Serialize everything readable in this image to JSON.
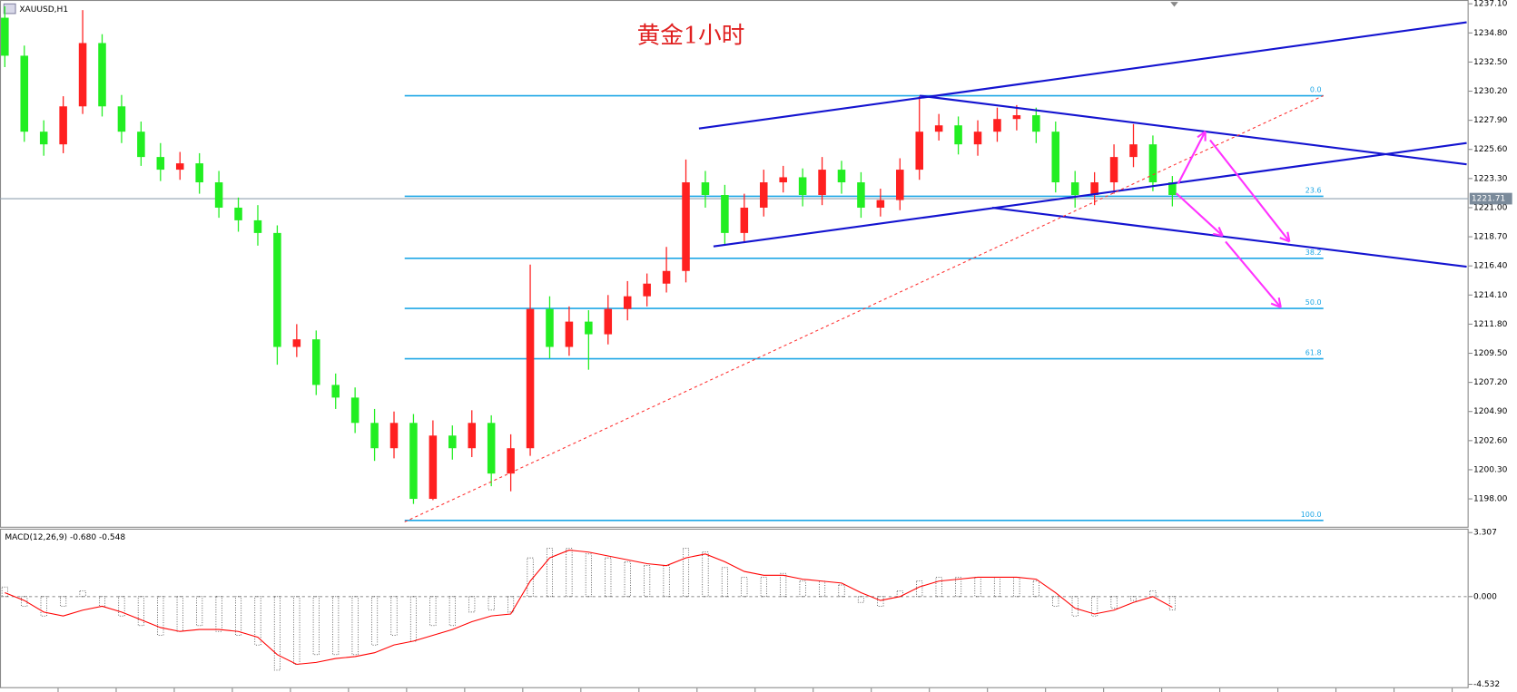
{
  "chart_data": [
    {
      "type": "candlestick",
      "title": "黄金1小时",
      "symbol": "XAUUSD,H1",
      "open": [
        1236,
        1233,
        1227,
        1226,
        1229,
        1234,
        1229,
        1227,
        1225,
        1224,
        1224.5,
        1223,
        1221,
        1220,
        1219,
        1210,
        1210.6,
        1207,
        1206,
        1204,
        1202,
        1204,
        1198,
        1203,
        1202,
        1204,
        1200,
        1202,
        1213,
        1210,
        1212,
        1211,
        1213,
        1214,
        1215,
        1216,
        1223,
        1222,
        1219,
        1221,
        1223,
        1223.4,
        1222,
        1224,
        1223,
        1221,
        1221.6,
        1224,
        1227,
        1227.5,
        1226,
        1227,
        1228,
        1228.3,
        1227,
        1223,
        1222,
        1223,
        1225,
        1226,
        1223
      ],
      "high": [
        1236.9,
        1233.8,
        1227.9,
        1229.8,
        1236.6,
        1234.7,
        1229.9,
        1227.8,
        1226.1,
        1225.4,
        1225.3,
        1223.9,
        1221.8,
        1221.2,
        1219.6,
        1211.8,
        1211.3,
        1207.9,
        1206.8,
        1205.1,
        1204.9,
        1204.7,
        1204.2,
        1203.8,
        1205.0,
        1204.6,
        1203.1,
        1216.5,
        1214.0,
        1213.2,
        1212.9,
        1214.1,
        1215.2,
        1215.8,
        1217.9,
        1224.8,
        1223.9,
        1222.8,
        1222.1,
        1224.0,
        1224.3,
        1224.1,
        1225.0,
        1224.7,
        1223.8,
        1222.5,
        1224.9,
        1229.8,
        1228.4,
        1228.2,
        1227.9,
        1228.9,
        1229.1,
        1228.9,
        1227.8,
        1223.9,
        1223.8,
        1226.0,
        1227.6,
        1226.7,
        1223.5
      ],
      "low": [
        1232.1,
        1226.2,
        1225.1,
        1225.3,
        1228.4,
        1228.2,
        1226.1,
        1224.3,
        1223.1,
        1223.2,
        1222.1,
        1220.2,
        1219.1,
        1218.0,
        1208.6,
        1209.2,
        1206.2,
        1205.1,
        1203.2,
        1201.0,
        1201.2,
        1197.6,
        1197.9,
        1201.1,
        1201.3,
        1199.0,
        1198.6,
        1201.4,
        1209.1,
        1209.3,
        1208.2,
        1210.2,
        1212.1,
        1213.2,
        1214.3,
        1215.1,
        1221.0,
        1218.1,
        1218.2,
        1220.3,
        1222.2,
        1221.1,
        1221.2,
        1222.1,
        1220.2,
        1220.3,
        1220.8,
        1223.2,
        1226.3,
        1225.2,
        1225.1,
        1226.2,
        1227.1,
        1226.1,
        1222.2,
        1221.0,
        1221.2,
        1222.1,
        1224.2,
        1222.3,
        1221.1
      ],
      "close": [
        1233,
        1227,
        1226,
        1229,
        1234,
        1229,
        1227,
        1225,
        1224,
        1224.5,
        1223,
        1221,
        1220,
        1219,
        1210,
        1210.6,
        1207,
        1206,
        1204,
        1202,
        1204,
        1198,
        1203,
        1202,
        1204,
        1200,
        1202,
        1213,
        1210,
        1212,
        1211,
        1213,
        1214,
        1215,
        1216,
        1223,
        1222,
        1219,
        1221,
        1223,
        1223.4,
        1222,
        1224,
        1223,
        1221,
        1221.6,
        1224,
        1227,
        1227.5,
        1226,
        1227,
        1228,
        1228.3,
        1227,
        1223,
        1222,
        1223,
        1225,
        1226,
        1223,
        1222
      ],
      "up_color": "#ff2020",
      "down_color": "#22ee22",
      "ylim": [
        1195.8,
        1237.4
      ],
      "yticks": [
        {
          "value": 1237.1,
          "label": "1237.10"
        },
        {
          "value": 1234.8,
          "label": "1234.80"
        },
        {
          "value": 1232.5,
          "label": "1232.50"
        },
        {
          "value": 1230.2,
          "label": "1230.20"
        },
        {
          "value": 1227.9,
          "label": "1227.90"
        },
        {
          "value": 1225.6,
          "label": "1225.60"
        },
        {
          "value": 1223.3,
          "label": "1223.30"
        },
        {
          "value": 1221,
          "label": "1221.00"
        },
        {
          "value": 1218.7,
          "label": "1218.70"
        },
        {
          "value": 1216.4,
          "label": "1216.40"
        },
        {
          "value": 1214.1,
          "label": "1214.10"
        },
        {
          "value": 1211.8,
          "label": "1211.80"
        },
        {
          "value": 1209.5,
          "label": "1209.50"
        },
        {
          "value": 1207.2,
          "label": "1207.20"
        },
        {
          "value": 1204.9,
          "label": "1204.90"
        },
        {
          "value": 1202.6,
          "label": "1202.60"
        },
        {
          "value": 1200.3,
          "label": "1200.30"
        },
        {
          "value": 1198,
          "label": "1198.00"
        }
      ],
      "fib_levels": [
        {
          "label": "0.0",
          "value": 1229.84
        },
        {
          "label": "23.6",
          "value": 1221.9
        },
        {
          "label": "38.2",
          "value": 1217.0
        },
        {
          "label": "50.0",
          "value": 1213.04
        },
        {
          "label": "61.8",
          "value": 1209.07
        },
        {
          "label": "100.0",
          "value": 1196.3
        }
      ],
      "fib_color": "#1ea7e6",
      "last_price": 1221.71
    },
    {
      "type": "macd",
      "label": "MACD(12,26,9) -0.680 -0.548",
      "histogram": [
        0.5,
        -0.5,
        -1,
        -0.5,
        0.3,
        -0.5,
        -1,
        -1.5,
        -2,
        -1.8,
        -1.5,
        -1.8,
        -2,
        -2.5,
        -3.8,
        -3.5,
        -3,
        -3,
        -3,
        -2.5,
        -2,
        -2.3,
        -1.5,
        -1.5,
        -0.8,
        -0.7,
        -0.8,
        2,
        2.5,
        2.5,
        2.2,
        2,
        1.8,
        1.6,
        1.6,
        2.5,
        2.3,
        1.5,
        1,
        1,
        1.2,
        0.8,
        0.8,
        0.6,
        -0.3,
        -0.5,
        0.3,
        0.8,
        1,
        1,
        1,
        1,
        1,
        0.8,
        -0.5,
        -1,
        -1,
        -0.6,
        -0.2,
        0.3,
        -0.7
      ],
      "signal": [
        0.2,
        -0.2,
        -0.8,
        -1,
        -0.7,
        -0.5,
        -0.8,
        -1.2,
        -1.6,
        -1.8,
        -1.7,
        -1.7,
        -1.8,
        -2.1,
        -3.0,
        -3.5,
        -3.4,
        -3.2,
        -3.1,
        -2.9,
        -2.5,
        -2.3,
        -2.0,
        -1.7,
        -1.3,
        -1.0,
        -0.9,
        0.8,
        2.0,
        2.4,
        2.3,
        2.1,
        1.9,
        1.7,
        1.6,
        2.0,
        2.2,
        1.8,
        1.3,
        1.1,
        1.1,
        0.9,
        0.8,
        0.7,
        0.2,
        -0.2,
        0,
        0.5,
        0.8,
        0.9,
        1,
        1,
        1,
        0.9,
        0.2,
        -0.6,
        -0.9,
        -0.7,
        -0.3,
        0,
        -0.55
      ],
      "histogram_color": "#222222",
      "signal_color": "#ff0000",
      "ylim": [
        -4.73,
        3.46
      ],
      "yticks": [
        3.307,
        {
          "value": 0,
          "label": "0.000"
        },
        -4.532
      ]
    }
  ]
}
